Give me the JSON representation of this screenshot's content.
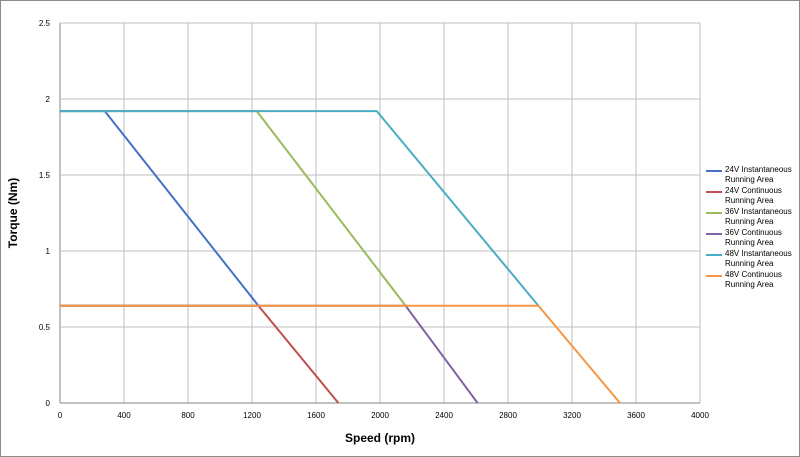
{
  "chart_data": {
    "type": "line",
    "xlabel": "Speed (rpm)",
    "ylabel": "Torque (Nm)",
    "xlim": [
      0,
      4000
    ],
    "ylim": [
      0,
      2.5
    ],
    "xticks": [
      "0",
      "400",
      "800",
      "1200",
      "1600",
      "2000",
      "2400",
      "2800",
      "3200",
      "3600",
      "4000"
    ],
    "yticks": [
      "0",
      "0.5",
      "1",
      "1.5",
      "2",
      "2.5"
    ],
    "grid": true,
    "legend_position": "right",
    "series": [
      {
        "name": "24V Instantaneous Running Area",
        "color": "#4472C4",
        "x": [
          0,
          280,
          1240
        ],
        "y": [
          1.92,
          1.92,
          0.64
        ]
      },
      {
        "name": "24V Continuous Running Area",
        "color": "#C0504D",
        "x": [
          0,
          1240,
          1740
        ],
        "y": [
          0.64,
          0.64,
          0
        ]
      },
      {
        "name": "36V Instantaneous Running Area",
        "color": "#9BBB59",
        "x": [
          0,
          1230,
          2160
        ],
        "y": [
          1.92,
          1.92,
          0.64
        ]
      },
      {
        "name": "36V Continuous Running Area",
        "color": "#8064A2",
        "x": [
          0,
          2160,
          2610
        ],
        "y": [
          0.64,
          0.64,
          0
        ]
      },
      {
        "name": "48V Instantaneous Running Area",
        "color": "#4BACC6",
        "x": [
          0,
          1980,
          2990
        ],
        "y": [
          1.92,
          1.92,
          0.64
        ]
      },
      {
        "name": "48V Continuous Running Area",
        "color": "#F79646",
        "x": [
          0,
          2990,
          3500
        ],
        "y": [
          0.64,
          0.64,
          0
        ]
      }
    ]
  }
}
